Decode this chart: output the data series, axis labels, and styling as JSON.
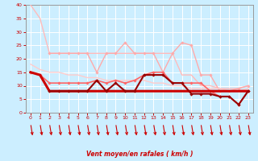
{
  "series": [
    {
      "color": "#ffbbbb",
      "lw": 1.0,
      "marker": null,
      "y": [
        40,
        35,
        22,
        22,
        22,
        22,
        22,
        22,
        22,
        22,
        22,
        22,
        22,
        22,
        22,
        22,
        14,
        14,
        10,
        10,
        9,
        9,
        9,
        10
      ]
    },
    {
      "color": "#ffaaaa",
      "lw": 1.0,
      "marker": "D",
      "ms": 1.8,
      "y": [
        null,
        null,
        22,
        22,
        22,
        22,
        22,
        15,
        22,
        22,
        26,
        22,
        22,
        22,
        15,
        22,
        26,
        25,
        14,
        14,
        8,
        8,
        9,
        10
      ]
    },
    {
      "color": "#ffcccc",
      "lw": 1.0,
      "marker": null,
      "y": [
        18,
        16,
        15,
        15,
        14,
        14,
        13,
        13,
        12,
        12,
        12,
        12,
        12,
        11,
        11,
        10,
        10,
        9,
        9,
        9,
        9,
        8,
        8,
        9
      ]
    },
    {
      "color": "#ff6666",
      "lw": 1.2,
      "marker": "D",
      "ms": 1.8,
      "y": [
        15,
        14,
        11,
        11,
        11,
        11,
        11,
        12,
        11,
        12,
        11,
        12,
        14,
        15,
        15,
        11,
        11,
        11,
        11,
        8,
        6,
        6,
        3,
        8
      ]
    },
    {
      "color": "#cc0000",
      "lw": 2.2,
      "marker": null,
      "y": [
        15,
        14,
        8,
        8,
        8,
        8,
        8,
        8,
        8,
        8,
        8,
        8,
        8,
        8,
        8,
        8,
        8,
        8,
        8,
        8,
        8,
        8,
        8,
        8
      ]
    },
    {
      "color": "#990000",
      "lw": 1.5,
      "marker": "D",
      "ms": 1.8,
      "y": [
        null,
        null,
        8,
        8,
        8,
        8,
        8,
        12,
        8,
        11,
        8,
        8,
        14,
        14,
        14,
        11,
        11,
        7,
        7,
        7,
        6,
        6,
        3,
        8
      ]
    }
  ],
  "x": [
    0,
    1,
    2,
    3,
    4,
    5,
    6,
    7,
    8,
    9,
    10,
    11,
    12,
    13,
    14,
    15,
    16,
    17,
    18,
    19,
    20,
    21,
    22,
    23
  ],
  "xlabel": "Vent moyen/en rafales ( km/h )",
  "xlim": [
    -0.5,
    23.5
  ],
  "ylim": [
    0,
    40
  ],
  "yticks": [
    0,
    5,
    10,
    15,
    20,
    25,
    30,
    35,
    40
  ],
  "xticks": [
    0,
    1,
    2,
    3,
    4,
    5,
    6,
    7,
    8,
    9,
    10,
    11,
    12,
    13,
    14,
    15,
    16,
    17,
    18,
    19,
    20,
    21,
    22,
    23
  ],
  "bg_color": "#cceeff",
  "grid_color": "#ffffff",
  "tick_color": "#cc0000",
  "label_color": "#cc0000",
  "arrow_color": "#cc0000"
}
